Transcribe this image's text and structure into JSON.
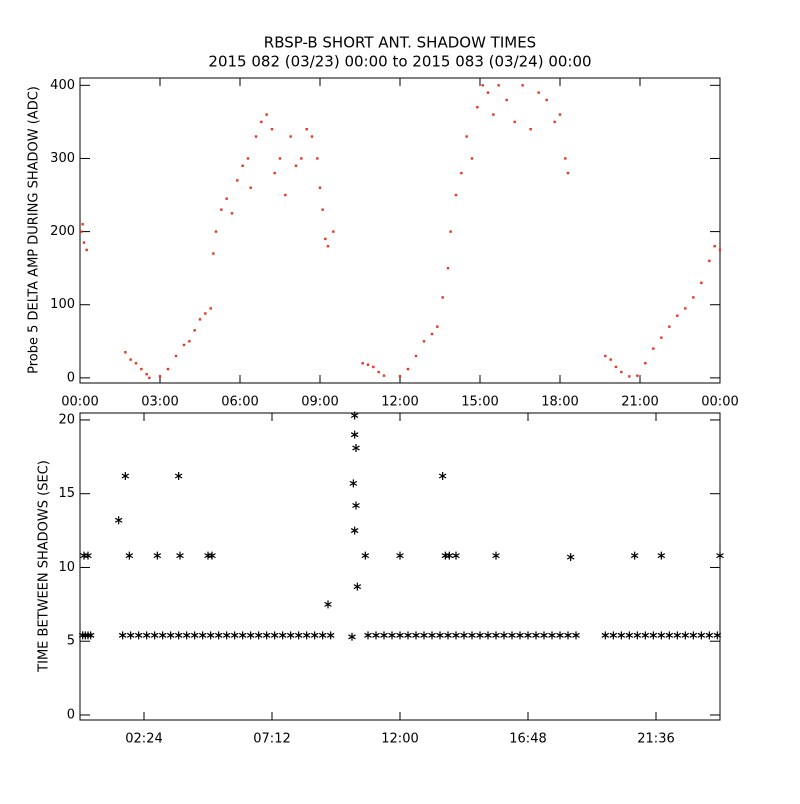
{
  "chart_data": [
    {
      "type": "scatter",
      "title": "RBSP-B SHORT ANT. SHADOW TIMES",
      "subtitle": "2015 082 (03/23) 00:00 to 2015 083 (03/24) 00:00",
      "ylabel": "Probe 5 DELTA AMP DURING SHADOW (ADC)",
      "marker": "dot",
      "xlim": [
        0,
        24
      ],
      "ylim": [
        -7,
        410
      ],
      "xticks": [
        {
          "value": 0,
          "label": "00:00"
        },
        {
          "value": 3,
          "label": "03:00"
        },
        {
          "value": 6,
          "label": "06:00"
        },
        {
          "value": 9,
          "label": "09:00"
        },
        {
          "value": 12,
          "label": "12:00"
        },
        {
          "value": 15,
          "label": "15:00"
        },
        {
          "value": 18,
          "label": "18:00"
        },
        {
          "value": 21,
          "label": "21:00"
        },
        {
          "value": 24,
          "label": "00:00"
        }
      ],
      "yticks": [
        0,
        100,
        200,
        300,
        400
      ],
      "series": [
        {
          "color": "#e8321e",
          "x": [
            0.05,
            0.1,
            0.15,
            0.25,
            1.7,
            1.9,
            2.1,
            2.3,
            2.5,
            2.6,
            3.0,
            3.3,
            3.6,
            3.9,
            4.1,
            4.3,
            4.5,
            4.7,
            4.9,
            5.0,
            5.1,
            5.3,
            5.5,
            5.7,
            5.9,
            6.1,
            6.3,
            6.4,
            6.6,
            6.8,
            7.0,
            7.2,
            7.3,
            7.5,
            7.7,
            7.9,
            8.1,
            8.3,
            8.5,
            8.7,
            8.9,
            9.0,
            9.1,
            9.2,
            9.3,
            9.5,
            10.6,
            10.8,
            11.0,
            11.2,
            11.4,
            12.0,
            12.3,
            12.6,
            12.9,
            13.2,
            13.4,
            13.6,
            13.8,
            13.9,
            14.1,
            14.3,
            14.5,
            14.7,
            14.9,
            15.1,
            15.3,
            15.5,
            15.7,
            16.0,
            16.3,
            16.6,
            16.9,
            17.2,
            17.5,
            17.8,
            18.0,
            18.2,
            18.3,
            19.7,
            19.9,
            20.1,
            20.3,
            20.6,
            20.9,
            21.2,
            21.5,
            21.8,
            22.1,
            22.4,
            22.7,
            23.0,
            23.3,
            23.6,
            23.8,
            24.0
          ],
          "values": [
            200,
            210,
            185,
            175,
            35,
            25,
            20,
            12,
            5,
            0,
            2,
            12,
            30,
            45,
            50,
            65,
            80,
            88,
            95,
            170,
            200,
            230,
            245,
            225,
            270,
            290,
            300,
            260,
            330,
            350,
            360,
            340,
            280,
            300,
            250,
            330,
            290,
            300,
            340,
            330,
            300,
            260,
            230,
            190,
            180,
            200,
            20,
            18,
            15,
            8,
            3,
            2,
            12,
            30,
            50,
            60,
            70,
            110,
            150,
            200,
            250,
            280,
            330,
            300,
            370,
            400,
            390,
            360,
            400,
            380,
            350,
            400,
            340,
            390,
            380,
            350,
            360,
            300,
            280,
            30,
            25,
            15,
            8,
            2,
            3,
            20,
            40,
            55,
            70,
            85,
            95,
            110,
            130,
            160,
            180,
            175
          ]
        }
      ]
    },
    {
      "type": "scatter",
      "ylabel": "TIME BETWEEN SHADOWS (SEC)",
      "marker": "asterisk",
      "xlim": [
        0,
        24
      ],
      "ylim": [
        -0.34,
        20.47
      ],
      "xticks": [
        {
          "value": 2.4,
          "label": "02:24"
        },
        {
          "value": 7.2,
          "label": "07:12"
        },
        {
          "value": 12,
          "label": "12:00"
        },
        {
          "value": 16.8,
          "label": "16:48"
        },
        {
          "value": 21.6,
          "label": "21:36"
        }
      ],
      "yticks": [
        0,
        5,
        10,
        15,
        20
      ],
      "series": [
        {
          "color": "#000000",
          "x": [
            0.1,
            0.2,
            0.3,
            0.4,
            1.6,
            1.9,
            2.2,
            2.5,
            2.8,
            3.1,
            3.4,
            3.7,
            4.0,
            4.3,
            4.6,
            4.9,
            5.2,
            5.5,
            5.8,
            6.1,
            6.4,
            6.7,
            7.0,
            7.3,
            7.6,
            7.9,
            8.2,
            8.5,
            8.8,
            9.1,
            9.4,
            10.8,
            11.1,
            11.4,
            11.7,
            12.0,
            12.3,
            12.6,
            12.9,
            13.2,
            13.5,
            13.8,
            14.1,
            14.4,
            14.7,
            15.0,
            15.3,
            15.6,
            15.9,
            16.2,
            16.5,
            16.8,
            17.1,
            17.4,
            17.7,
            18.0,
            18.3,
            18.6,
            19.7,
            20.0,
            20.3,
            20.6,
            20.9,
            21.2,
            21.5,
            21.8,
            22.1,
            22.4,
            22.7,
            23.0,
            23.3,
            23.6,
            23.9,
            0.15,
            0.3,
            1.45,
            1.7,
            1.85,
            2.9,
            3.7,
            3.75,
            4.8,
            4.95,
            9.3,
            10.2,
            10.25,
            10.3,
            10.3,
            10.35,
            10.35,
            10.3,
            10.4,
            10.7,
            12.0,
            13.6,
            13.7,
            13.85,
            14.1,
            15.6,
            18.4,
            20.8,
            21.8,
            24.0
          ],
          "values": [
            5.4,
            5.4,
            5.4,
            5.4,
            5.4,
            5.4,
            5.4,
            5.4,
            5.4,
            5.4,
            5.4,
            5.4,
            5.4,
            5.4,
            5.4,
            5.4,
            5.4,
            5.4,
            5.4,
            5.4,
            5.4,
            5.4,
            5.4,
            5.4,
            5.4,
            5.4,
            5.4,
            5.4,
            5.4,
            5.4,
            5.4,
            5.4,
            5.4,
            5.4,
            5.4,
            5.4,
            5.4,
            5.4,
            5.4,
            5.4,
            5.4,
            5.4,
            5.4,
            5.4,
            5.4,
            5.4,
            5.4,
            5.4,
            5.4,
            5.4,
            5.4,
            5.4,
            5.4,
            5.4,
            5.4,
            5.4,
            5.4,
            5.4,
            5.4,
            5.4,
            5.4,
            5.4,
            5.4,
            5.4,
            5.4,
            5.4,
            5.4,
            5.4,
            5.4,
            5.4,
            5.4,
            5.4,
            5.4,
            10.8,
            10.8,
            13.2,
            16.2,
            10.8,
            10.8,
            16.2,
            10.8,
            10.8,
            10.8,
            7.5,
            5.3,
            15.7,
            20.3,
            19,
            18.1,
            14.2,
            12.5,
            8.7,
            10.8,
            10.8,
            16.2,
            10.8,
            10.8,
            10.8,
            10.8,
            10.7,
            10.8,
            10.8,
            10.8
          ]
        }
      ]
    }
  ]
}
